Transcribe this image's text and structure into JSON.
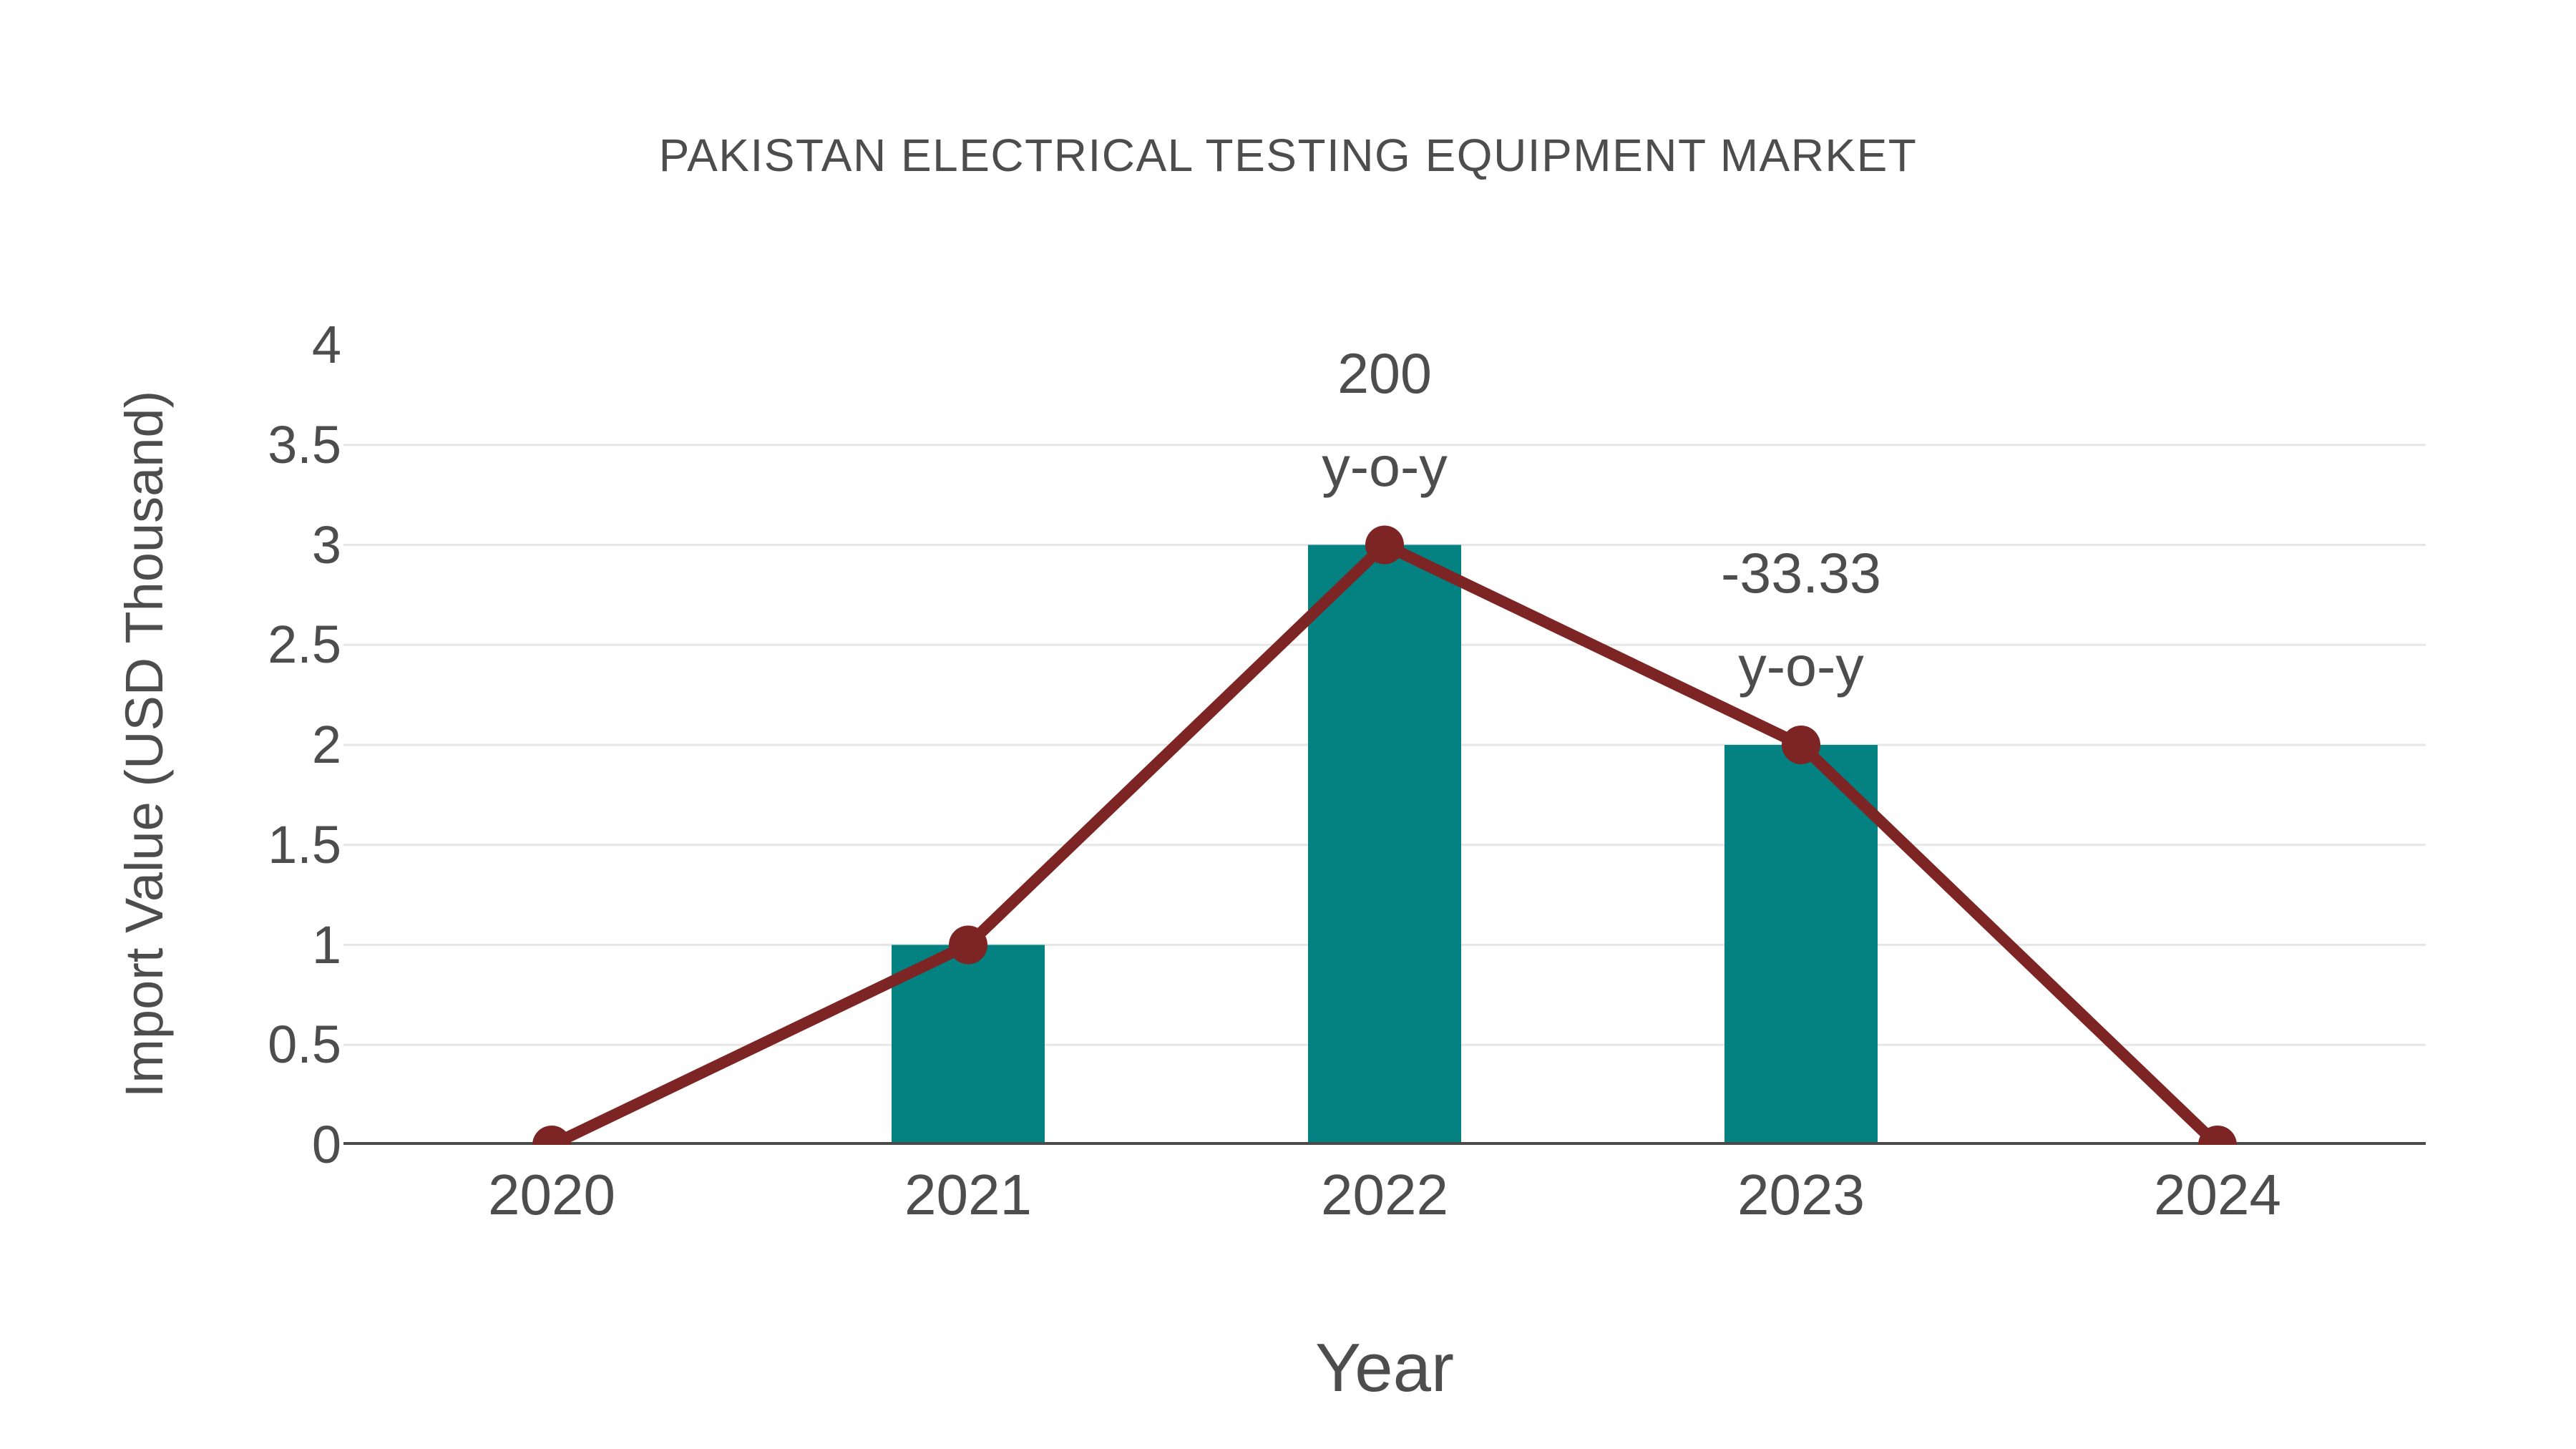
{
  "chart_data": {
    "type": "bar",
    "subtype": "bar-with-trend-line",
    "title": "PAKISTAN ELECTRICAL TESTING EQUIPMENT MARKET",
    "xlabel": "Year",
    "ylabel": "Import Value (USD Thousand)",
    "categories": [
      "2020",
      "2021",
      "2022",
      "2023",
      "2024"
    ],
    "series": [
      {
        "name": "Import Value bars",
        "type": "bar",
        "values": [
          null,
          1,
          3,
          2,
          null
        ]
      },
      {
        "name": "Import Value trend",
        "type": "line",
        "values": [
          0,
          1,
          3,
          2,
          0
        ]
      }
    ],
    "ylim": [
      0,
      4
    ],
    "yticks": [
      0,
      0.5,
      1,
      1.5,
      2,
      2.5,
      3,
      3.5,
      4
    ],
    "grid": "horizontal",
    "legend": "none",
    "annotations": [
      {
        "category": "2022",
        "lines": [
          "200",
          "y-o-y"
        ]
      },
      {
        "category": "2023",
        "lines": [
          "-33.33",
          "y-o-y"
        ]
      }
    ]
  },
  "colors": {
    "bar": "#048181",
    "line": "#7d2424",
    "grid": "#e6e6e6",
    "axis_line": "#4a4a4a",
    "text": "#4d4d4d",
    "background": "#ffffff"
  }
}
